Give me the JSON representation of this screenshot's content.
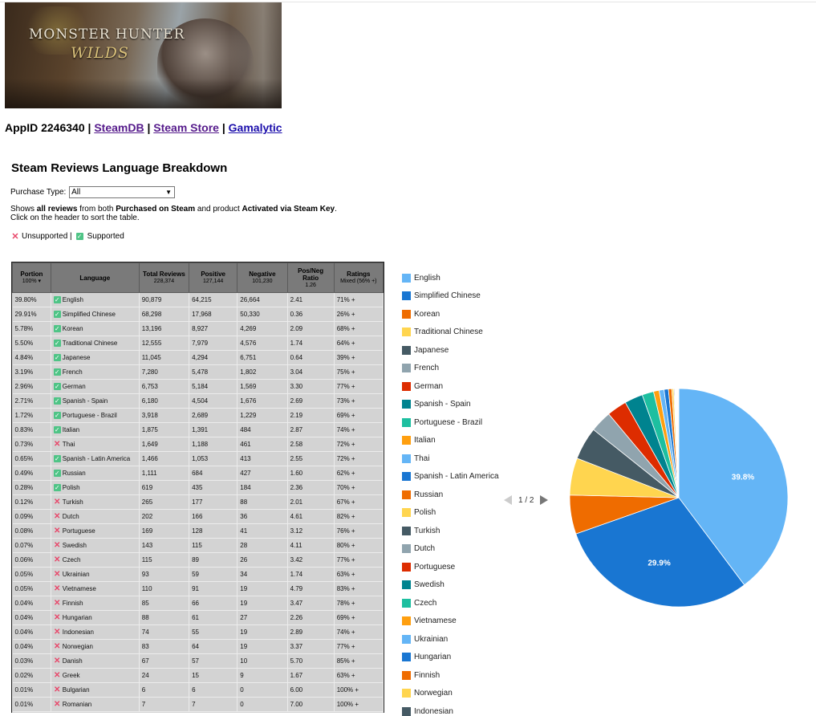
{
  "banner": {
    "line1": "MONSTER HUNTER",
    "line2": "WILDS"
  },
  "header": {
    "appid_label": "AppID 2246340",
    "sep": "|",
    "links": [
      "SteamDB",
      "Steam Store",
      "Gamalytic"
    ]
  },
  "title": "Steam Reviews Language Breakdown",
  "purchase": {
    "label": "Purchase Type:",
    "value": "All"
  },
  "desc": {
    "p1": "Shows ",
    "b1": "all reviews",
    "p2": " from both ",
    "b2": "Purchased on Steam",
    "p3": " and product ",
    "b3": "Activated via Steam Key",
    "p4": ".",
    "line2": "Click on the header to sort the table."
  },
  "legendkey": {
    "unsupported": "Unsupported |",
    "supported": "Supported"
  },
  "table": {
    "headers": [
      {
        "title": "Portion",
        "sub": "100% ▾"
      },
      {
        "title": "Language",
        "sub": ""
      },
      {
        "title": "Total Reviews",
        "sub": "228,374"
      },
      {
        "title": "Positive",
        "sub": "127,144"
      },
      {
        "title": "Negative",
        "sub": "101,230"
      },
      {
        "title": "Pos/Neg Ratio",
        "sub": "1.26"
      },
      {
        "title": "Ratings",
        "sub": "Mixed (56% +)"
      }
    ],
    "rows": [
      {
        "portion": "39.80%",
        "s": true,
        "lang": "English",
        "total": "90,879",
        "pos": "64,215",
        "neg": "26,664",
        "ratio": "2.41",
        "rating": "71% +"
      },
      {
        "portion": "29.91%",
        "s": true,
        "lang": "Simplified Chinese",
        "total": "68,298",
        "pos": "17,968",
        "neg": "50,330",
        "ratio": "0.36",
        "rating": "26% +"
      },
      {
        "portion": "5.78%",
        "s": true,
        "lang": "Korean",
        "total": "13,196",
        "pos": "8,927",
        "neg": "4,269",
        "ratio": "2.09",
        "rating": "68% +"
      },
      {
        "portion": "5.50%",
        "s": true,
        "lang": "Traditional Chinese",
        "total": "12,555",
        "pos": "7,979",
        "neg": "4,576",
        "ratio": "1.74",
        "rating": "64% +"
      },
      {
        "portion": "4.84%",
        "s": true,
        "lang": "Japanese",
        "total": "11,045",
        "pos": "4,294",
        "neg": "6,751",
        "ratio": "0.64",
        "rating": "39% +"
      },
      {
        "portion": "3.19%",
        "s": true,
        "lang": "French",
        "total": "7,280",
        "pos": "5,478",
        "neg": "1,802",
        "ratio": "3.04",
        "rating": "75% +"
      },
      {
        "portion": "2.96%",
        "s": true,
        "lang": "German",
        "total": "6,753",
        "pos": "5,184",
        "neg": "1,569",
        "ratio": "3.30",
        "rating": "77% +"
      },
      {
        "portion": "2.71%",
        "s": true,
        "lang": "Spanish - Spain",
        "total": "6,180",
        "pos": "4,504",
        "neg": "1,676",
        "ratio": "2.69",
        "rating": "73% +"
      },
      {
        "portion": "1.72%",
        "s": true,
        "lang": "Portuguese - Brazil",
        "total": "3,918",
        "pos": "2,689",
        "neg": "1,229",
        "ratio": "2.19",
        "rating": "69% +"
      },
      {
        "portion": "0.83%",
        "s": true,
        "lang": "Italian",
        "total": "1,875",
        "pos": "1,391",
        "neg": "484",
        "ratio": "2.87",
        "rating": "74% +"
      },
      {
        "portion": "0.73%",
        "s": false,
        "lang": "Thai",
        "total": "1,649",
        "pos": "1,188",
        "neg": "461",
        "ratio": "2.58",
        "rating": "72% +"
      },
      {
        "portion": "0.65%",
        "s": true,
        "lang": "Spanish - Latin America",
        "total": "1,466",
        "pos": "1,053",
        "neg": "413",
        "ratio": "2.55",
        "rating": "72% +"
      },
      {
        "portion": "0.49%",
        "s": true,
        "lang": "Russian",
        "total": "1,111",
        "pos": "684",
        "neg": "427",
        "ratio": "1.60",
        "rating": "62% +"
      },
      {
        "portion": "0.28%",
        "s": true,
        "lang": "Polish",
        "total": "619",
        "pos": "435",
        "neg": "184",
        "ratio": "2.36",
        "rating": "70% +"
      },
      {
        "portion": "0.12%",
        "s": false,
        "lang": "Turkish",
        "total": "265",
        "pos": "177",
        "neg": "88",
        "ratio": "2.01",
        "rating": "67% +"
      },
      {
        "portion": "0.09%",
        "s": false,
        "lang": "Dutch",
        "total": "202",
        "pos": "166",
        "neg": "36",
        "ratio": "4.61",
        "rating": "82% +"
      },
      {
        "portion": "0.08%",
        "s": false,
        "lang": "Portuguese",
        "total": "169",
        "pos": "128",
        "neg": "41",
        "ratio": "3.12",
        "rating": "76% +"
      },
      {
        "portion": "0.07%",
        "s": false,
        "lang": "Swedish",
        "total": "143",
        "pos": "115",
        "neg": "28",
        "ratio": "4.11",
        "rating": "80% +"
      },
      {
        "portion": "0.06%",
        "s": false,
        "lang": "Czech",
        "total": "115",
        "pos": "89",
        "neg": "26",
        "ratio": "3.42",
        "rating": "77% +"
      },
      {
        "portion": "0.05%",
        "s": false,
        "lang": "Ukrainian",
        "total": "93",
        "pos": "59",
        "neg": "34",
        "ratio": "1.74",
        "rating": "63% +"
      },
      {
        "portion": "0.05%",
        "s": false,
        "lang": "Vietnamese",
        "total": "110",
        "pos": "91",
        "neg": "19",
        "ratio": "4.79",
        "rating": "83% +"
      },
      {
        "portion": "0.04%",
        "s": false,
        "lang": "Finnish",
        "total": "85",
        "pos": "66",
        "neg": "19",
        "ratio": "3.47",
        "rating": "78% +"
      },
      {
        "portion": "0.04%",
        "s": false,
        "lang": "Hungarian",
        "total": "88",
        "pos": "61",
        "neg": "27",
        "ratio": "2.26",
        "rating": "69% +"
      },
      {
        "portion": "0.04%",
        "s": false,
        "lang": "Indonesian",
        "total": "74",
        "pos": "55",
        "neg": "19",
        "ratio": "2.89",
        "rating": "74% +"
      },
      {
        "portion": "0.04%",
        "s": false,
        "lang": "Norwegian",
        "total": "83",
        "pos": "64",
        "neg": "19",
        "ratio": "3.37",
        "rating": "77% +"
      },
      {
        "portion": "0.03%",
        "s": false,
        "lang": "Danish",
        "total": "67",
        "pos": "57",
        "neg": "10",
        "ratio": "5.70",
        "rating": "85% +"
      },
      {
        "portion": "0.02%",
        "s": false,
        "lang": "Greek",
        "total": "24",
        "pos": "15",
        "neg": "9",
        "ratio": "1.67",
        "rating": "63% +"
      },
      {
        "portion": "0.01%",
        "s": false,
        "lang": "Bulgarian",
        "total": "6",
        "pos": "6",
        "neg": "0",
        "ratio": "6.00",
        "rating": "100% +"
      },
      {
        "portion": "0.01%",
        "s": false,
        "lang": "Romanian",
        "total": "7",
        "pos": "7",
        "neg": "0",
        "ratio": "7.00",
        "rating": "100% +"
      }
    ]
  },
  "pager": "1 / 2",
  "chart_data": {
    "type": "pie",
    "legend": "right",
    "slices": [
      {
        "label": "English",
        "value": 39.8,
        "color": "#64b5f6",
        "shown": "39.8%"
      },
      {
        "label": "Simplified Chinese",
        "value": 29.91,
        "color": "#1976d2",
        "shown": "29.9%"
      },
      {
        "label": "Korean",
        "value": 5.78,
        "color": "#ef6c00"
      },
      {
        "label": "Traditional Chinese",
        "value": 5.5,
        "color": "#ffd54f"
      },
      {
        "label": "Japanese",
        "value": 4.84,
        "color": "#455a64"
      },
      {
        "label": "French",
        "value": 3.19,
        "color": "#90a4ae"
      },
      {
        "label": "German",
        "value": 2.96,
        "color": "#dd2c00"
      },
      {
        "label": "Spanish - Spain",
        "value": 2.71,
        "color": "#00838f"
      },
      {
        "label": "Portuguese - Brazil",
        "value": 1.72,
        "color": "#1dbfa0"
      },
      {
        "label": "Italian",
        "value": 0.83,
        "color": "#ff9f0f"
      },
      {
        "label": "Thai",
        "value": 0.73,
        "color": "#64b5f6"
      },
      {
        "label": "Spanish - Latin America",
        "value": 0.65,
        "color": "#1976d2"
      },
      {
        "label": "Russian",
        "value": 0.49,
        "color": "#ef6c00"
      },
      {
        "label": "Polish",
        "value": 0.28,
        "color": "#ffd54f"
      },
      {
        "label": "Turkish",
        "value": 0.12,
        "color": "#455a64"
      },
      {
        "label": "Dutch",
        "value": 0.09,
        "color": "#90a4ae"
      },
      {
        "label": "Portuguese",
        "value": 0.08,
        "color": "#dd2c00"
      },
      {
        "label": "Swedish",
        "value": 0.07,
        "color": "#00838f"
      },
      {
        "label": "Czech",
        "value": 0.06,
        "color": "#1dbfa0"
      },
      {
        "label": "Vietnamese",
        "value": 0.05,
        "color": "#ff9f0f"
      },
      {
        "label": "Ukrainian",
        "value": 0.05,
        "color": "#64b5f6"
      },
      {
        "label": "Hungarian",
        "value": 0.04,
        "color": "#1976d2"
      },
      {
        "label": "Finnish",
        "value": 0.04,
        "color": "#ef6c00"
      },
      {
        "label": "Norwegian",
        "value": 0.04,
        "color": "#ffd54f"
      },
      {
        "label": "Indonesian",
        "value": 0.04,
        "color": "#455a64"
      },
      {
        "label": "Danish",
        "value": 0.03,
        "color": "#90a4ae"
      },
      {
        "label": "Greek",
        "value": 0.02,
        "color": "#dd2c00"
      },
      {
        "label": "Bulgarian",
        "value": 0.01,
        "color": "#00838f"
      },
      {
        "label": "Romanian",
        "value": 0.01,
        "color": "#1dbfa0"
      }
    ],
    "legend_items": [
      "English",
      "Simplified Chinese",
      "Korean",
      "Traditional Chinese",
      "Japanese",
      "French",
      "German",
      "Spanish - Spain",
      "Portuguese - Brazil",
      "Italian",
      "Thai",
      "Spanish - Latin America",
      "Russian",
      "Polish",
      "Turkish",
      "Dutch",
      "Portuguese",
      "Swedish",
      "Czech",
      "Vietnamese",
      "Ukrainian",
      "Hungarian",
      "Finnish",
      "Norwegian",
      "Indonesian"
    ]
  }
}
